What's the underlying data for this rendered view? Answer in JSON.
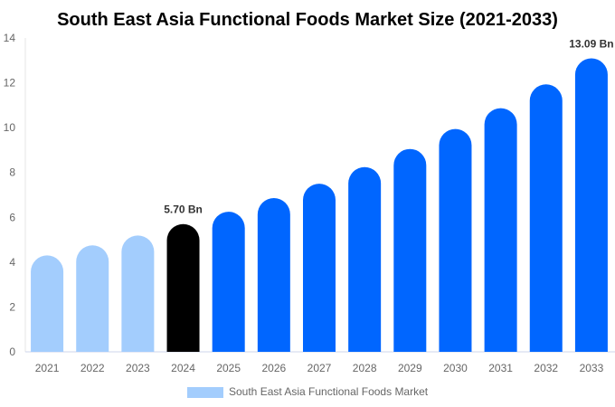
{
  "chart_data": {
    "type": "bar",
    "title": "South East Asia Functional Foods Market Size (2021-2033)",
    "xlabel": "",
    "ylabel": "",
    "ylim": [
      0,
      14
    ],
    "yticks": [
      0,
      2,
      4,
      6,
      8,
      10,
      12,
      14
    ],
    "grid": false,
    "legend_position": "bottom",
    "categories": [
      "2021",
      "2022",
      "2023",
      "2024",
      "2025",
      "2026",
      "2027",
      "2028",
      "2029",
      "2030",
      "2031",
      "2032",
      "2033"
    ],
    "series": [
      {
        "name": "South East Asia Functional Foods Market",
        "values": [
          4.3,
          4.75,
          5.19,
          5.7,
          6.25,
          6.86,
          7.5,
          8.24,
          9.05,
          9.94,
          10.87,
          11.93,
          13.09
        ]
      }
    ],
    "data_labels": [
      {
        "category": "2024",
        "text": "5.70 Bn"
      },
      {
        "category": "2033",
        "text": "13.09 Bn"
      }
    ],
    "colors": {
      "historical": "#a3cdfd",
      "base_year": "#000000",
      "forecast": "#0066ff",
      "legend": "#a3cdfd"
    }
  }
}
